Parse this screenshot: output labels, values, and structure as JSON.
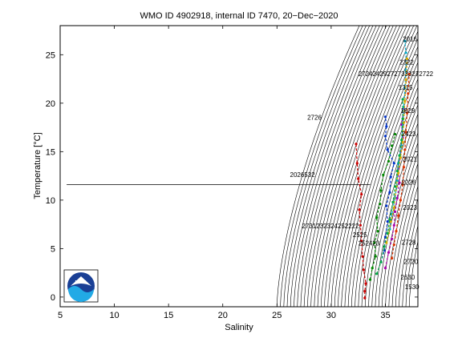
{
  "chart_data": {
    "type": "scatter",
    "title": "WMO ID 4902918, internal ID 7470, 20−Dec−2020",
    "xlabel": "Salinity",
    "ylabel": "Temperature [°C]",
    "xlim": [
      5,
      38
    ],
    "ylim": [
      -1,
      28
    ],
    "xticks": [
      5,
      10,
      15,
      20,
      25,
      30,
      35
    ],
    "yticks": [
      0,
      5,
      10,
      15,
      20,
      25
    ],
    "grid": false,
    "reference_line": {
      "y": 11.6
    },
    "density_contours": {
      "x_at_min_temp_start": 25.0,
      "x_at_min_temp_end": 37.2,
      "count": 40
    },
    "series": [
      {
        "color": "#cc0000",
        "points": [
          [
            33.1,
            -0.1
          ],
          [
            33.1,
            0.6
          ],
          [
            33.2,
            1.4
          ],
          [
            33.0,
            2.8
          ],
          [
            32.9,
            4.2
          ],
          [
            32.8,
            5.8
          ],
          [
            32.7,
            7.4
          ],
          [
            32.6,
            9.0
          ],
          [
            32.8,
            10.6
          ],
          [
            32.5,
            12.2
          ],
          [
            32.4,
            13.8
          ],
          [
            32.3,
            15.8
          ]
        ]
      },
      {
        "color": "#008800",
        "points": [
          [
            33.6,
            1.8
          ],
          [
            33.8,
            3.0
          ],
          [
            34.1,
            4.2
          ],
          [
            34.0,
            5.6
          ],
          [
            34.3,
            6.8
          ],
          [
            34.2,
            8.2
          ],
          [
            34.5,
            9.6
          ],
          [
            34.6,
            11.0
          ],
          [
            34.8,
            12.6
          ],
          [
            35.3,
            14.0
          ],
          [
            35.6,
            15.6
          ],
          [
            35.9,
            16.8
          ]
        ]
      },
      {
        "color": "#0033cc",
        "points": [
          [
            34.6,
            3.6
          ],
          [
            34.9,
            4.8
          ],
          [
            35.0,
            6.2
          ],
          [
            35.2,
            7.8
          ],
          [
            35.1,
            9.4
          ],
          [
            35.4,
            10.8
          ],
          [
            35.5,
            12.4
          ],
          [
            35.8,
            13.8
          ],
          [
            35.2,
            15.2
          ],
          [
            35.0,
            16.6
          ],
          [
            35.1,
            17.6
          ],
          [
            35.0,
            18.6
          ]
        ]
      },
      {
        "color": "#aa00aa",
        "points": [
          [
            35.0,
            3.0
          ],
          [
            35.3,
            4.6
          ],
          [
            35.6,
            6.0
          ],
          [
            35.8,
            7.4
          ],
          [
            35.9,
            8.8
          ],
          [
            36.1,
            10.2
          ],
          [
            36.3,
            11.8
          ],
          [
            36.2,
            13.2
          ],
          [
            36.4,
            15.0
          ],
          [
            36.6,
            16.4
          ],
          [
            36.5,
            17.8
          ],
          [
            36.7,
            19.4
          ]
        ]
      },
      {
        "color": "#00aacc",
        "points": [
          [
            35.4,
            7.0
          ],
          [
            35.6,
            8.6
          ],
          [
            35.9,
            10.2
          ],
          [
            36.1,
            12.0
          ],
          [
            36.2,
            13.8
          ],
          [
            36.5,
            15.6
          ],
          [
            36.6,
            17.6
          ],
          [
            36.7,
            19.6
          ],
          [
            36.8,
            21.6
          ],
          [
            36.9,
            23.4
          ],
          [
            36.9,
            25.2
          ],
          [
            36.8,
            26.4
          ]
        ]
      },
      {
        "color": "#ddaa00",
        "points": [
          [
            35.1,
            5.6
          ],
          [
            35.3,
            6.6
          ],
          [
            35.5,
            7.8
          ],
          [
            35.8,
            9.2
          ],
          [
            36.0,
            11.4
          ],
          [
            36.2,
            12.8
          ],
          [
            36.4,
            14.4
          ],
          [
            36.6,
            16.0
          ],
          [
            36.7,
            18.0
          ],
          [
            36.8,
            20.2
          ],
          [
            36.9,
            22.4
          ],
          [
            37.0,
            24.6
          ]
        ]
      },
      {
        "color": "#00aa44",
        "points": [
          [
            34.2,
            2.4
          ],
          [
            34.6,
            3.6
          ],
          [
            34.9,
            5.2
          ],
          [
            35.2,
            6.6
          ],
          [
            35.4,
            8.0
          ],
          [
            35.7,
            9.8
          ],
          [
            35.9,
            11.4
          ],
          [
            36.1,
            13.0
          ],
          [
            36.3,
            14.6
          ],
          [
            36.5,
            16.2
          ],
          [
            36.6,
            18.4
          ],
          [
            36.6,
            20.4
          ]
        ]
      },
      {
        "color": "#dd3300",
        "points": [
          [
            35.6,
            4.0
          ],
          [
            35.8,
            5.4
          ],
          [
            36.0,
            6.8
          ],
          [
            36.2,
            8.4
          ],
          [
            36.4,
            10.0
          ],
          [
            36.6,
            11.6
          ],
          [
            36.7,
            13.4
          ],
          [
            36.8,
            15.2
          ],
          [
            36.9,
            17.0
          ],
          [
            37.0,
            19.0
          ],
          [
            37.1,
            21.0
          ],
          [
            37.2,
            23.0
          ]
        ]
      }
    ],
    "annotations": [
      {
        "text": "272424292727333272722",
        "x": 32.5,
        "y": 22.8
      },
      {
        "text": "2726",
        "x": 27.8,
        "y": 18.3
      },
      {
        "text": "2026532",
        "x": 26.2,
        "y": 12.4
      },
      {
        "text": "2731232324252222",
        "x": 27.3,
        "y": 7.1
      },
      {
        "text": "2525",
        "x": 32.0,
        "y": 6.2
      },
      {
        "text": "252423",
        "x": 32.5,
        "y": 5.3
      },
      {
        "text": "2016",
        "x": 36.6,
        "y": 26.4
      },
      {
        "text": "2322",
        "x": 36.3,
        "y": 24.0
      },
      {
        "text": "1315",
        "x": 36.2,
        "y": 21.4
      },
      {
        "text": "1629",
        "x": 36.4,
        "y": 19.0
      },
      {
        "text": "2423",
        "x": 36.5,
        "y": 16.6
      },
      {
        "text": "2021",
        "x": 36.6,
        "y": 14.0
      },
      {
        "text": "2226",
        "x": 36.5,
        "y": 11.6
      },
      {
        "text": "2023",
        "x": 36.6,
        "y": 9.0
      },
      {
        "text": "2728",
        "x": 36.5,
        "y": 5.4
      },
      {
        "text": "2720",
        "x": 36.7,
        "y": 3.4
      },
      {
        "text": "2630",
        "x": 36.4,
        "y": 1.8
      },
      {
        "text": "1530",
        "x": 36.8,
        "y": 0.8
      }
    ]
  },
  "logo": {
    "text": "NOAA"
  }
}
